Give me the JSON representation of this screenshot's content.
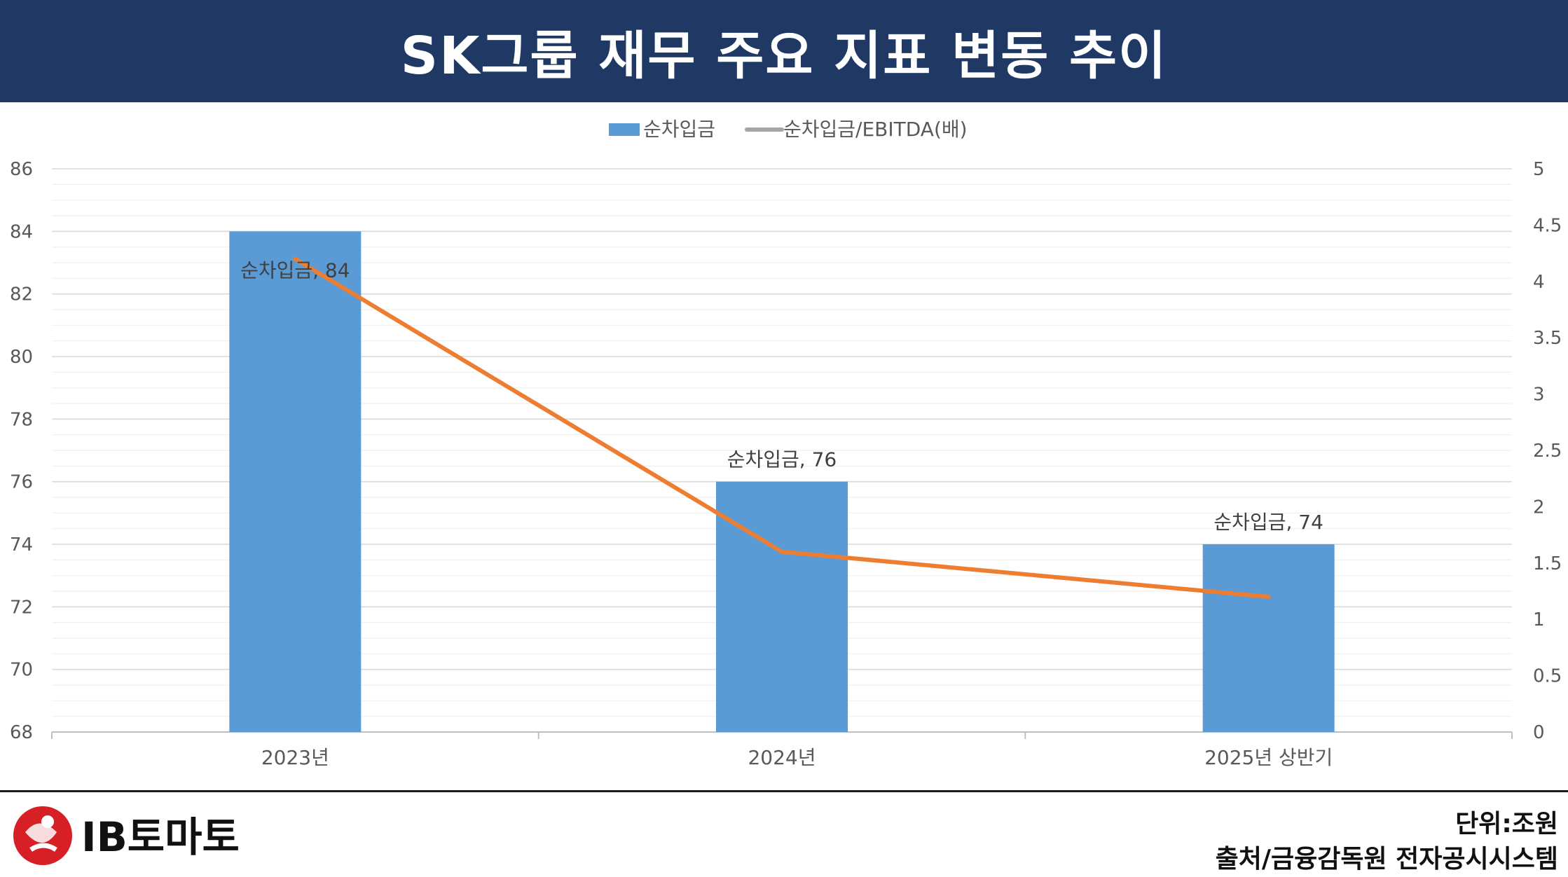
{
  "header": {
    "title": "SK그룹 재무 주요 지표 변동 추이"
  },
  "chart_data": {
    "type": "bar",
    "categories": [
      "2023년",
      "2024년",
      "2025년 상반기"
    ],
    "series": [
      {
        "name": "순차입금",
        "type": "bar",
        "axis": "left",
        "values": [
          84,
          76,
          74
        ],
        "color": "#5b9bd5",
        "data_labels": [
          "순차입금, 84",
          "순차입금, 76",
          "순차입금, 74"
        ]
      },
      {
        "name": "순차입금/EBITDA(배)",
        "type": "line",
        "axis": "right",
        "values": [
          4.2,
          1.6,
          1.2
        ],
        "color": "#ed7d31"
      }
    ],
    "legend": {
      "placement": "top-center",
      "items": [
        "순차입금",
        "순차입금/EBITDA(배)"
      ],
      "colors": [
        "#5b9bd5",
        "#a5a5a5"
      ]
    },
    "y_left": {
      "lim": [
        68,
        86
      ],
      "ticks": [
        "68",
        "70",
        "72",
        "74",
        "76",
        "78",
        "80",
        "82",
        "84",
        "86"
      ]
    },
    "y_right": {
      "lim": [
        0,
        5
      ],
      "ticks": [
        "0",
        "0.5",
        "1",
        "1.5",
        "2",
        "2.5",
        "3",
        "3.5",
        "4",
        "4.5",
        "5"
      ]
    },
    "grid": true
  },
  "footer": {
    "brand": "IB토마토",
    "unit": "단위:조원",
    "source": "출처/금융감독원 전자공시시스템"
  }
}
